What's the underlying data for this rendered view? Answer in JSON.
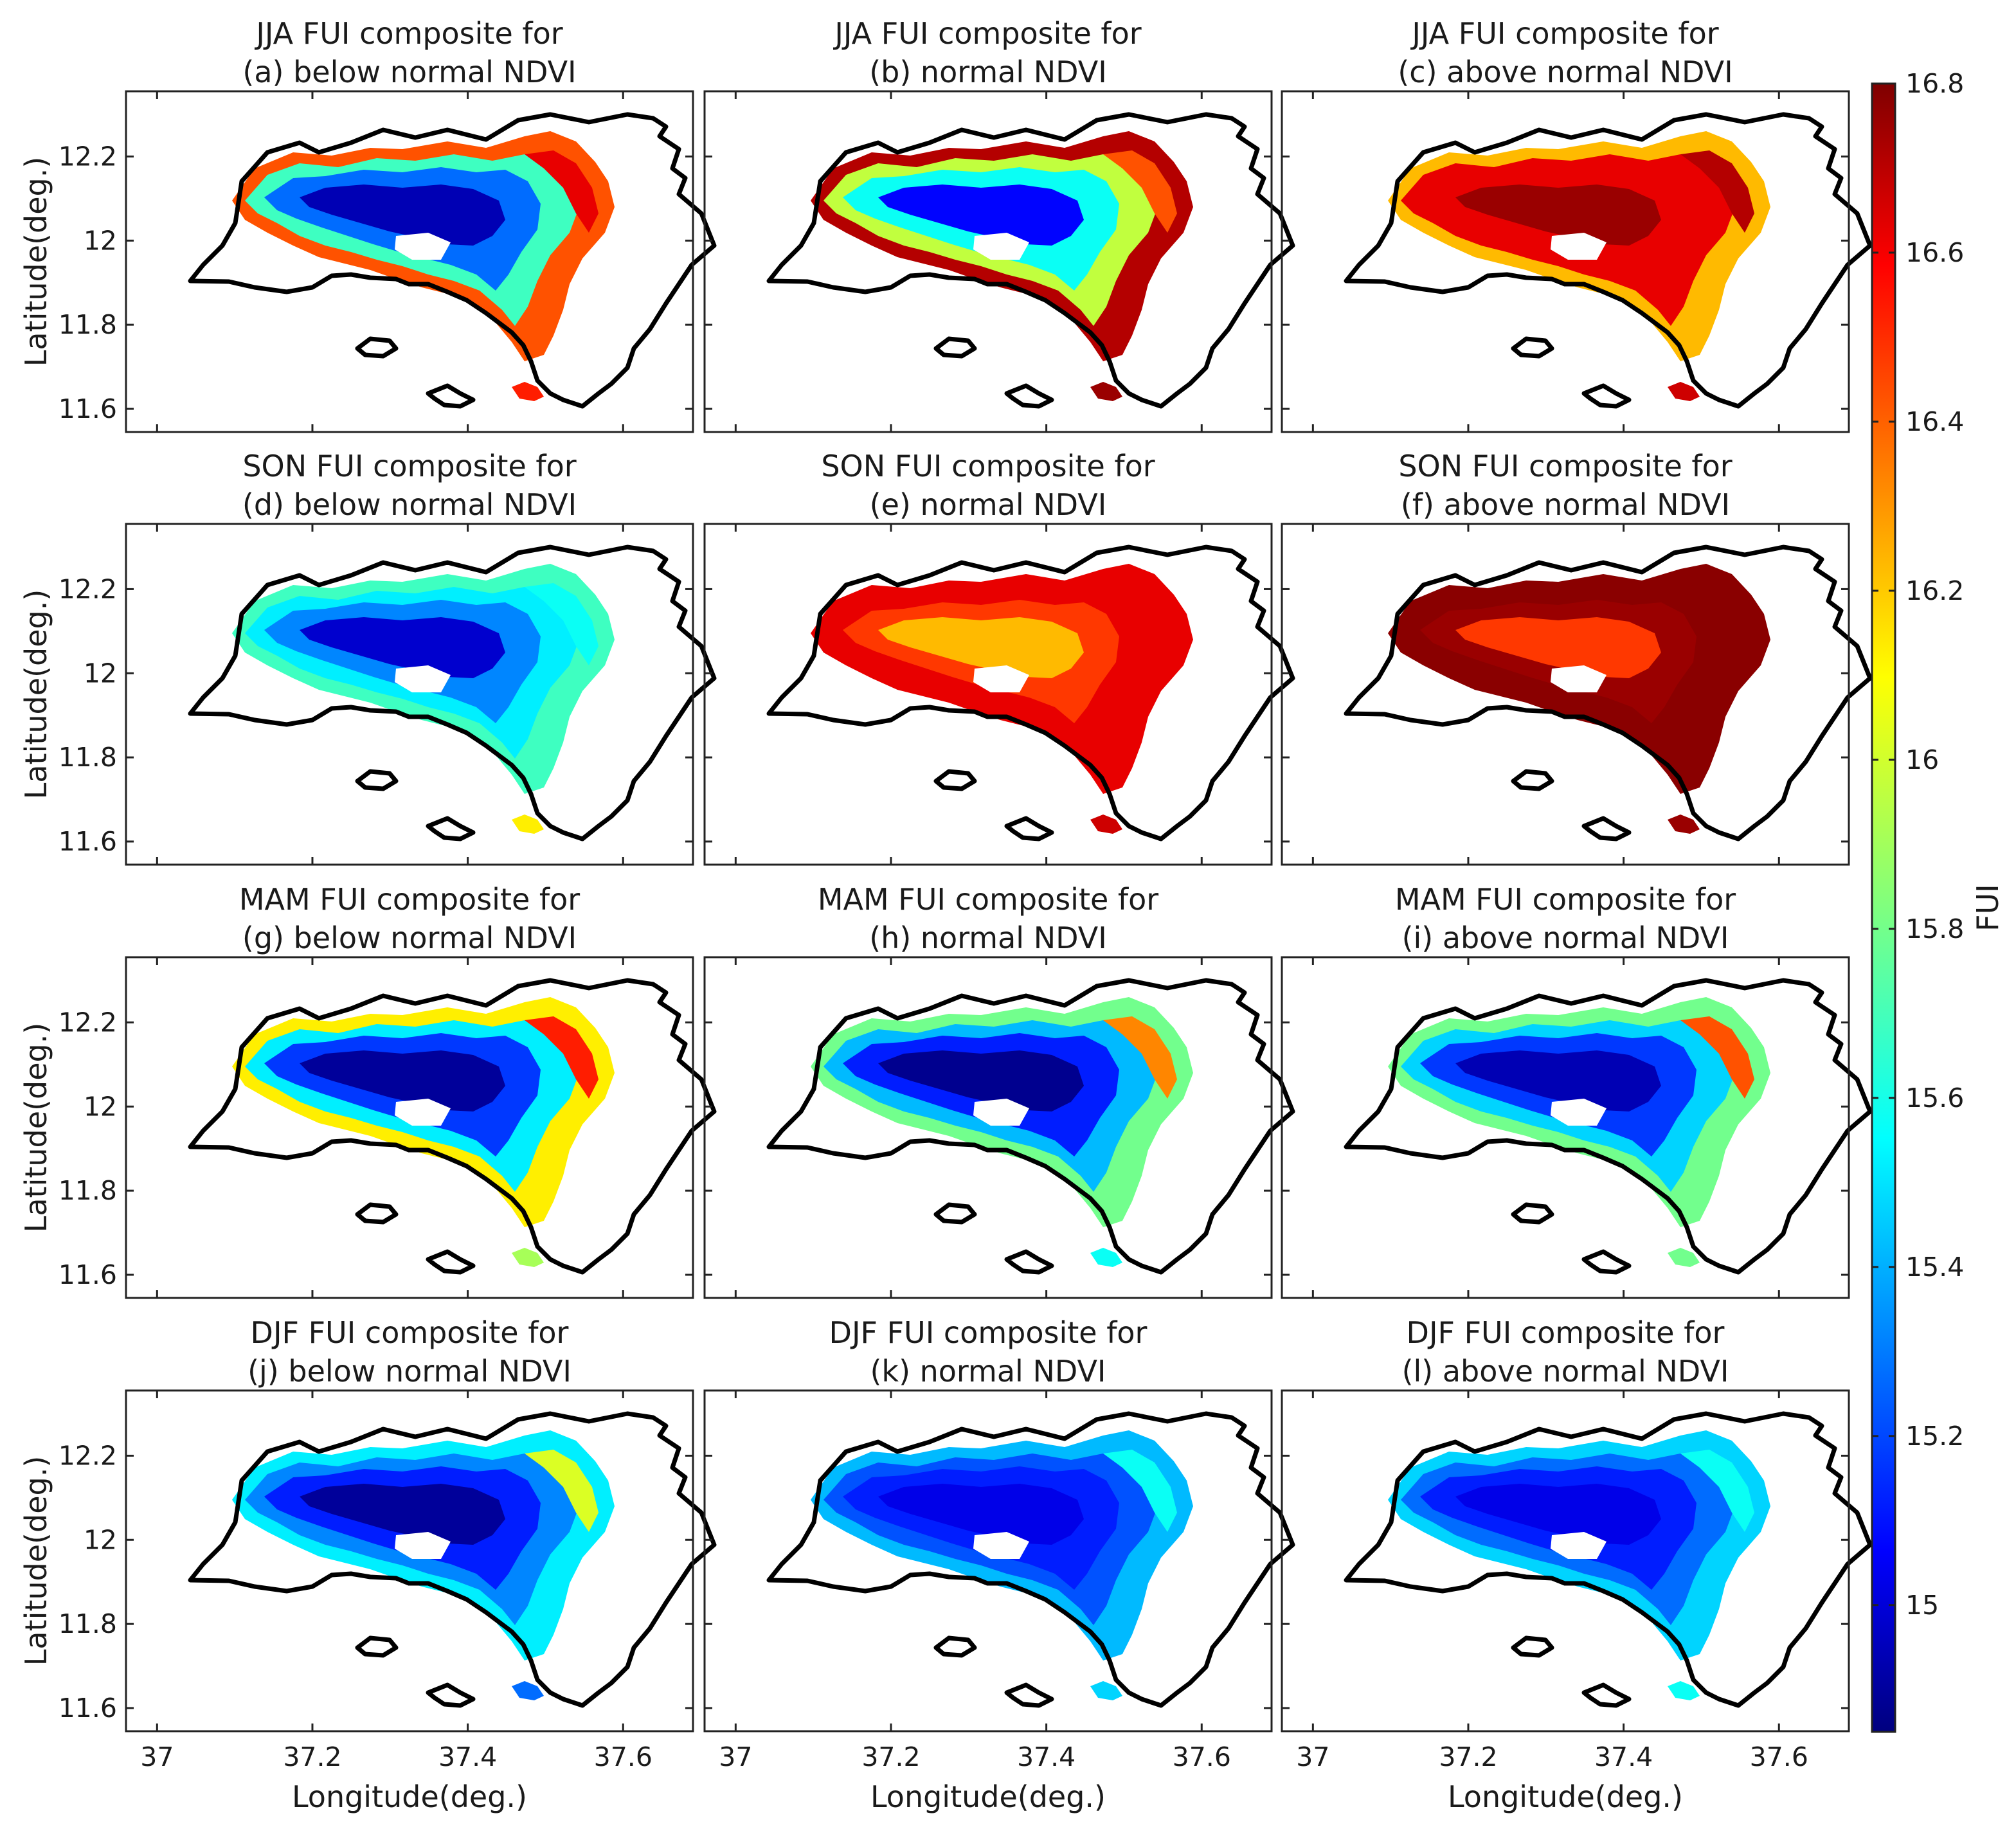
{
  "chart_data": {
    "type": "heatmap",
    "figure_description_title": "FUI composites for below normal, normal and above normal NDVI by season",
    "xlabel": "Longitude(deg.)",
    "ylabel": "Latitude(deg.)",
    "xlim": [
      36.96,
      37.69
    ],
    "ylim": [
      11.545,
      12.355
    ],
    "xticks": [
      37,
      37.2,
      37.4,
      37.6
    ],
    "xtick_labels": [
      "37",
      "37.2",
      "37.4",
      "37.6"
    ],
    "yticks": [
      11.6,
      11.8,
      12,
      12.2
    ],
    "ytick_labels": [
      "11.6",
      "11.8",
      "12",
      "12.2"
    ],
    "colorbar": {
      "label": "FUI",
      "colormap": "jet",
      "range": [
        14.85,
        16.8
      ],
      "ticks": [
        15,
        15.2,
        15.4,
        15.6,
        15.8,
        16,
        16.2,
        16.4,
        16.6,
        16.8
      ],
      "tick_labels": [
        "15",
        "15.2",
        "15.4",
        "15.6",
        "15.8",
        "16",
        "16.2",
        "16.4",
        "16.6",
        "16.8"
      ]
    },
    "panels": [
      {
        "title1": "JJA FUI composite for",
        "title2": "(a) below normal NDVI",
        "fui": {
          "center": 14.95,
          "mid": 15.3,
          "edge": 15.7,
          "rim": 16.4,
          "northeast": 16.6,
          "south": 16.5
        }
      },
      {
        "title1": "JJA  FUI composite for",
        "title2": "(b) normal NDVI",
        "fui": {
          "center": 15.1,
          "mid": 15.6,
          "edge": 15.95,
          "rim": 16.7,
          "northeast": 16.4,
          "south": 16.75
        }
      },
      {
        "title1": "JJA FUI composite for",
        "title2": "(c) above normal NDVI",
        "fui": {
          "center": 16.75,
          "mid": 16.6,
          "edge": 16.6,
          "rim": 16.2,
          "northeast": 16.7,
          "south": 16.65
        }
      },
      {
        "title1": "SON FUI composite for",
        "title2": "(d) below normal NDVI",
        "fui": {
          "center": 15.0,
          "mid": 15.35,
          "edge": 15.55,
          "rim": 15.7,
          "northeast": 15.6,
          "south": 16.1
        }
      },
      {
        "title1": "SON FUI composite for",
        "title2": "(e) normal NDVI",
        "fui": {
          "center": 16.2,
          "mid": 16.45,
          "edge": 16.6,
          "rim": 16.6,
          "northeast": 16.6,
          "south": 16.65
        }
      },
      {
        "title1": "SON FUI composite for",
        "title2": "(f) above normal NDVI",
        "fui": {
          "center": 16.45,
          "mid": 16.75,
          "edge": 16.78,
          "rim": 16.78,
          "northeast": 16.78,
          "south": 16.75
        }
      },
      {
        "title1": "MAM FUI composite for",
        "title2": "(g) below normal NDVI",
        "fui": {
          "center": 14.9,
          "mid": 15.2,
          "edge": 15.55,
          "rim": 16.1,
          "northeast": 16.5,
          "south": 15.9
        }
      },
      {
        "title1": "MAM FUI composite for",
        "title2": "(h) normal NDVI",
        "fui": {
          "center": 14.88,
          "mid": 15.15,
          "edge": 15.45,
          "rim": 15.8,
          "northeast": 16.3,
          "south": 15.6
        }
      },
      {
        "title1": "MAM FUI composite for",
        "title2": "(i) above normal NDVI",
        "fui": {
          "center": 14.95,
          "mid": 15.2,
          "edge": 15.5,
          "rim": 15.8,
          "northeast": 16.4,
          "south": 15.8
        }
      },
      {
        "title1": "DJF FUI composite for",
        "title2": "(j) below normal NDVI",
        "fui": {
          "center": 14.9,
          "mid": 15.15,
          "edge": 15.35,
          "rim": 15.55,
          "northeast": 16.0,
          "south": 15.3
        }
      },
      {
        "title1": "DJF FUI composite for",
        "title2": "(k) normal NDVI",
        "fui": {
          "center": 15.05,
          "mid": 15.15,
          "edge": 15.25,
          "rim": 15.45,
          "northeast": 15.6,
          "south": 15.5
        }
      },
      {
        "title1": "DJF FUI composite for",
        "title2": "(l) above normal NDVI",
        "fui": {
          "center": 15.05,
          "mid": 15.15,
          "edge": 15.3,
          "rim": 15.5,
          "northeast": 15.6,
          "south": 15.6
        }
      }
    ]
  }
}
